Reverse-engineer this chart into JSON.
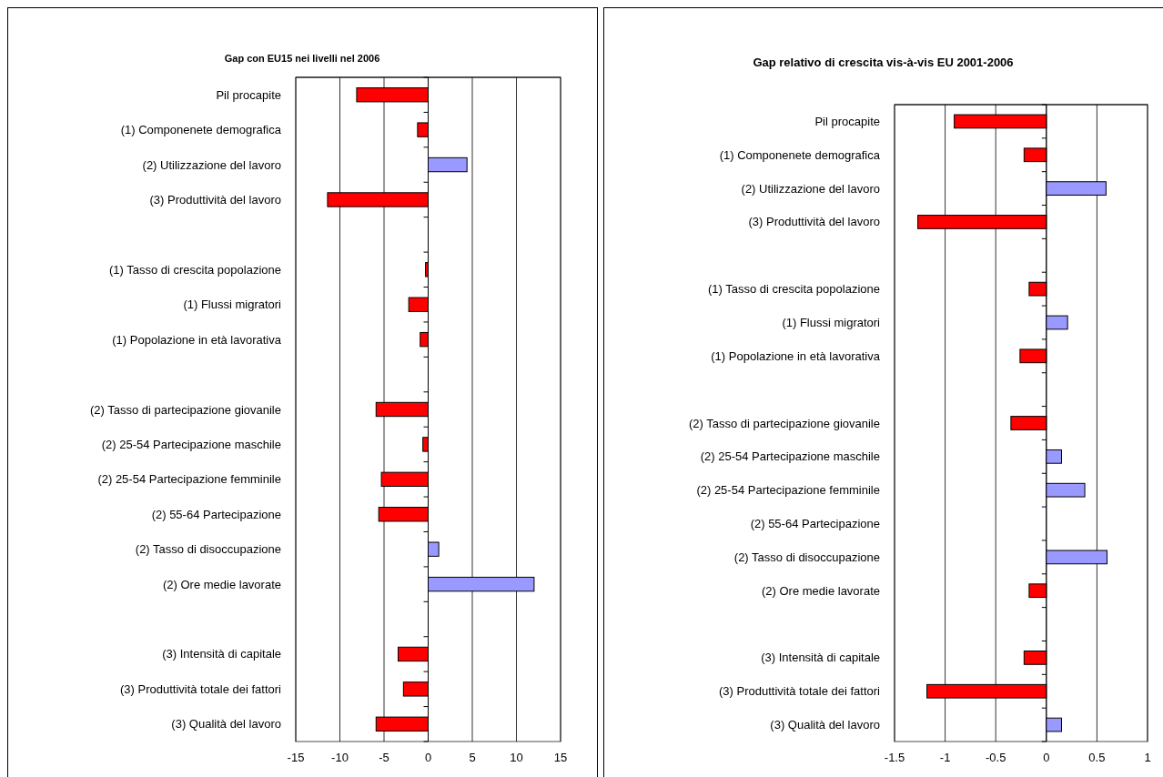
{
  "chart_data": [
    {
      "type": "bar",
      "orientation": "horizontal",
      "title": "Gap con EU15 nei livelli nel 2006",
      "categories": [
        "Pil procapite",
        "(1) Componenete demografica",
        "(2) Utilizzazione del lavoro",
        "(3) Produttività del lavoro",
        null,
        "(1) Tasso di crescita popolazione",
        "(1) Flussi migratori",
        "(1) Popolazione in età lavorativa",
        null,
        "(2) Tasso di partecipazione giovanile",
        "(2) 25-54 Partecipazione maschile",
        "(2) 25-54 Partecipazione femminile",
        "(2) 55-64 Partecipazione",
        "(2) Tasso di disoccupazione",
        "(2) Ore medie lavorate",
        null,
        "(3) Intensità di capitale ",
        "(3) Produttività totale dei fattori",
        "(3) Qualità del lavoro"
      ],
      "values": [
        -8.1,
        -1.2,
        4.4,
        -11.4,
        null,
        -0.3,
        -2.2,
        -0.9,
        null,
        -5.9,
        -0.6,
        -5.3,
        -5.6,
        1.2,
        12.0,
        null,
        -3.4,
        -2.8,
        -5.9
      ],
      "colors": [
        "#ff0000",
        "#ff0000",
        "#9999ff",
        "#ff0000",
        null,
        "#ff0000",
        "#ff0000",
        "#ff0000",
        null,
        "#ff0000",
        "#ff0000",
        "#ff0000",
        "#ff0000",
        "#9999ff",
        "#9999ff",
        null,
        "#ff0000",
        "#ff0000",
        "#ff0000"
      ],
      "xlim": [
        -15,
        15
      ],
      "xticks": [
        -15,
        -10,
        -5,
        0,
        5,
        10,
        15
      ],
      "grid": "x"
    },
    {
      "type": "bar",
      "orientation": "horizontal",
      "title": "Gap relativo di crescita vis-à-vis EU 2001-2006",
      "categories": [
        "Pil procapite",
        "(1) Componenete demografica",
        "(2) Utilizzazione del lavoro",
        "(3) Produttività del lavoro",
        null,
        "(1) Tasso di crescita popolazione",
        "(1) Flussi migratori",
        "(1) Popolazione in età lavorativa",
        null,
        "(2) Tasso di partecipazione giovanile",
        "(2) 25-54 Partecipazione maschile",
        "(2) 25-54 Partecipazione femminile",
        "(2) 55-64 Partecipazione",
        "(2) Tasso di disoccupazione",
        "(2) Ore medie lavorate",
        null,
        "(3) Intensità di capitale ",
        "(3) Produttività totale dei fattori",
        "(3) Qualità del lavoro"
      ],
      "values": [
        -0.91,
        -0.22,
        0.59,
        -1.27,
        null,
        -0.17,
        0.21,
        -0.26,
        null,
        -0.35,
        0.15,
        0.38,
        null,
        0.6,
        -0.17,
        null,
        -0.22,
        -1.18,
        0.15
      ],
      "colors": [
        "#ff0000",
        "#ff0000",
        "#9999ff",
        "#ff0000",
        null,
        "#ff0000",
        "#9999ff",
        "#ff0000",
        null,
        "#ff0000",
        "#9999ff",
        "#9999ff",
        null,
        "#9999ff",
        "#ff0000",
        null,
        "#ff0000",
        "#ff0000",
        "#9999ff"
      ],
      "xlim": [
        -1.5,
        1
      ],
      "xticks": [
        -1.5,
        -1,
        -0.5,
        0,
        0.5,
        1
      ],
      "grid": "x"
    }
  ]
}
